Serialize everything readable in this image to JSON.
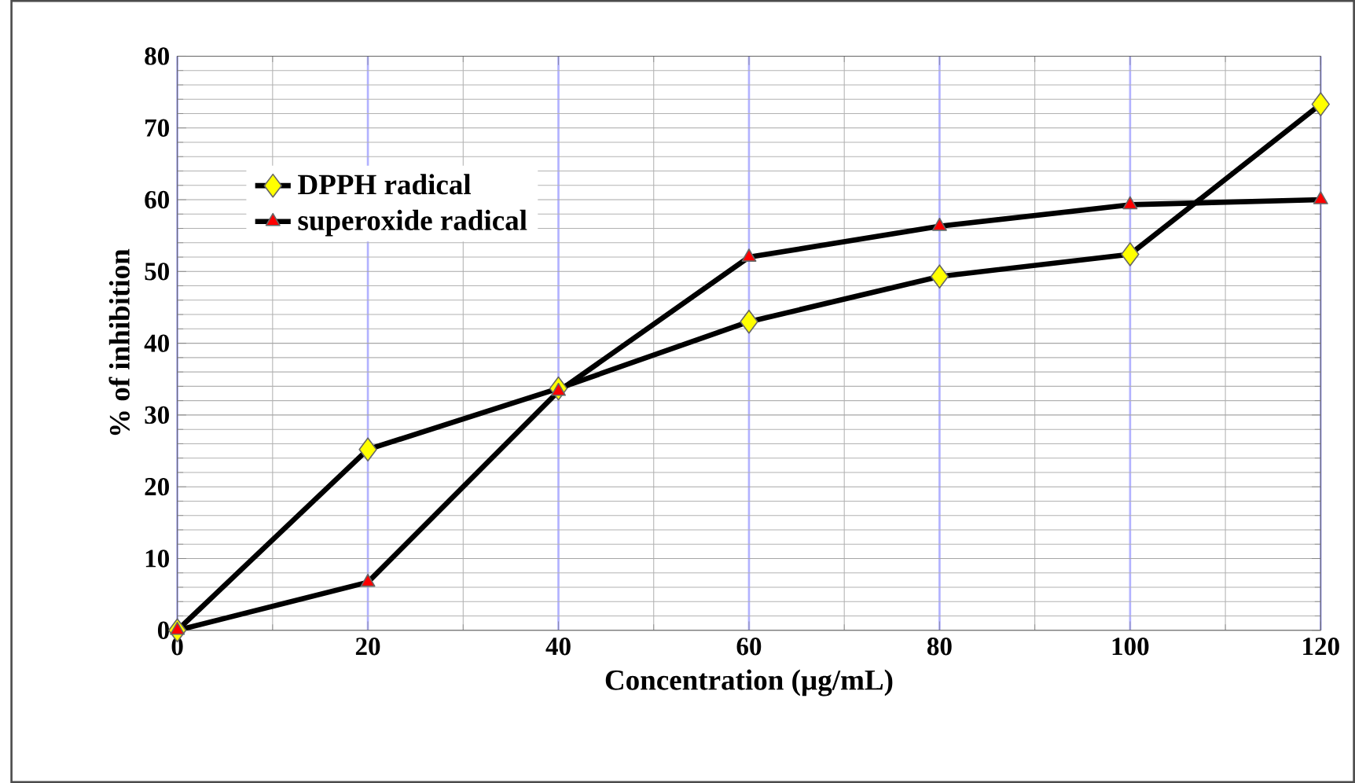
{
  "chart_data": {
    "type": "line",
    "xlabel": "Concentration (µg/mL)",
    "ylabel": "% of inhibition",
    "x": [
      0,
      20,
      40,
      60,
      80,
      100,
      120
    ],
    "series": [
      {
        "name": "DPPH radical",
        "color": "#ffff00",
        "marker": "diamond",
        "values": [
          0,
          25.2,
          33.7,
          43,
          49.3,
          52.4,
          73.3
        ]
      },
      {
        "name": "superoxide radical",
        "color": "#ff0000",
        "marker": "triangle",
        "values": [
          0,
          6.7,
          33.3,
          52,
          56.3,
          59.3,
          60
        ]
      }
    ],
    "xlim": [
      0,
      120
    ],
    "xticks": [
      0,
      20,
      40,
      60,
      80,
      100,
      120
    ],
    "ylim": [
      0,
      80
    ],
    "yticks": [
      0,
      10,
      20,
      30,
      40,
      50,
      60,
      70,
      80
    ],
    "grid": true,
    "legend": "top left",
    "line_style": "solid"
  }
}
